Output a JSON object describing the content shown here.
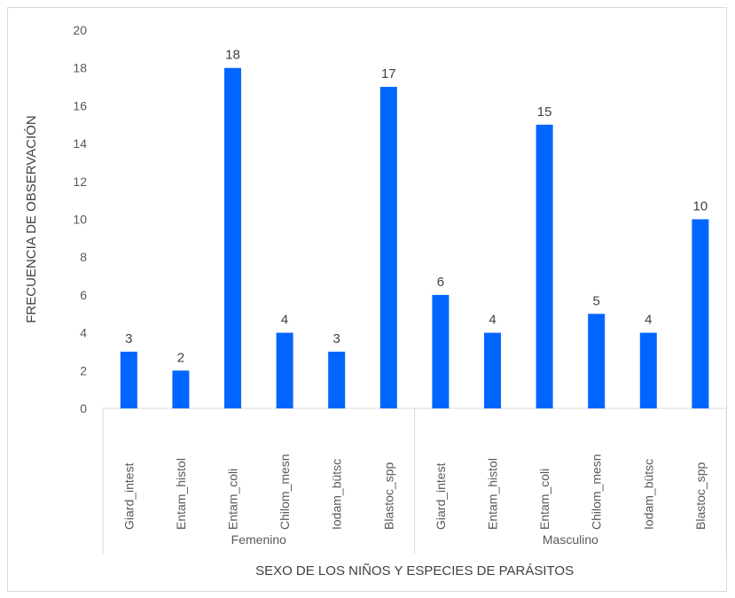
{
  "chart_data": {
    "type": "bar",
    "title": "",
    "xlabel": "SEXO DE LOS NIÑOS Y ESPECIES DE PARÁSITOS",
    "ylabel": "FRECUENCIA DE OBSERVACIÓN",
    "ylim": [
      0,
      20
    ],
    "yticks": [
      0,
      2,
      4,
      6,
      8,
      10,
      12,
      14,
      16,
      18,
      20
    ],
    "grid": false,
    "legend": "none",
    "bar_color": "#0066ff",
    "groups": [
      {
        "name": "Femenino",
        "categories": [
          "Giard_intest",
          "Entam_histol",
          "Entam_coli",
          "Chilom_mesn",
          "Iodam_bütsc",
          "Blastoc_spp"
        ],
        "values": [
          3,
          2,
          18,
          4,
          3,
          17
        ]
      },
      {
        "name": "Masculino",
        "categories": [
          "Giard_intest",
          "Entam_histol",
          "Entam_coli",
          "Chilom_mesn",
          "Iodam_bütsc",
          "Blastoc_spp"
        ],
        "values": [
          6,
          4,
          15,
          5,
          4,
          10
        ]
      }
    ]
  }
}
